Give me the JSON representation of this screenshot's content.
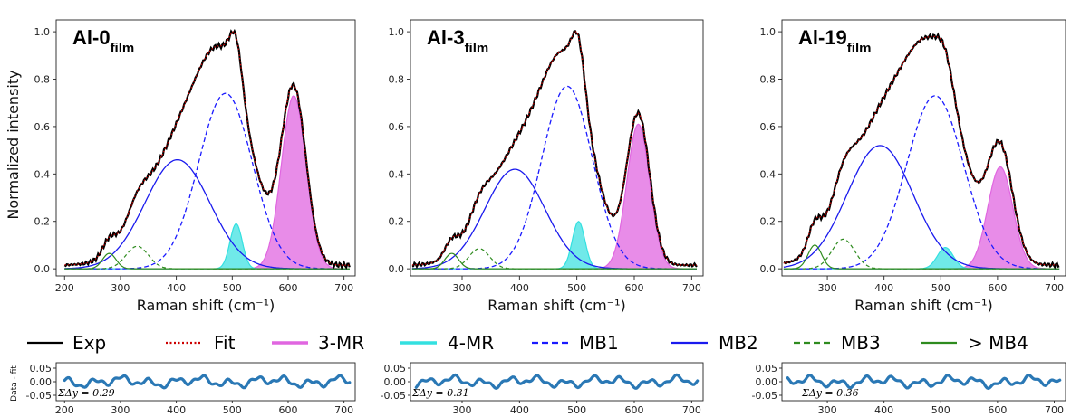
{
  "legend": {
    "items": [
      {
        "label": "Exp",
        "color": "#000000",
        "style": "solid"
      },
      {
        "label": "Fit",
        "color": "#cc0000",
        "style": "dotted"
      },
      {
        "label": "3-MR",
        "color": "#e066e0",
        "style": "solid"
      },
      {
        "label": "4-MR",
        "color": "#33e0e0",
        "style": "solid"
      },
      {
        "label": "MB1",
        "color": "#1a1aff",
        "style": "dashed"
      },
      {
        "label": "MB2",
        "color": "#1a1aee",
        "style": "solid"
      },
      {
        "label": "MB3",
        "color": "#2e8b1e",
        "style": "dashed"
      },
      {
        "label": "> MB4",
        "color": "#2e8b1e",
        "style": "solid"
      }
    ]
  },
  "chart_data": [
    {
      "type": "line",
      "title": "Al-0",
      "title_sub": "film",
      "xlabel": "Raman shift (cm⁻¹)",
      "ylabel": "Normalized intensity",
      "xlim": [
        185,
        720
      ],
      "ylim": [
        -0.03,
        1.05
      ],
      "xticks": [
        200,
        300,
        400,
        500,
        600,
        700
      ],
      "yticks": [
        0.0,
        0.2,
        0.4,
        0.6,
        0.8,
        1.0
      ],
      "components": {
        "3-MR": {
          "center": 610,
          "amplitude": 0.73,
          "width": 22
        },
        "4-MR": {
          "center": 507,
          "amplitude": 0.19,
          "width": 11
        },
        "MB1": {
          "center": 488,
          "amplitude": 0.74,
          "width": 48
        },
        "MB2": {
          "center": 402,
          "amplitude": 0.46,
          "width": 58
        },
        "MB3": {
          "center": 330,
          "amplitude": 0.095,
          "width": 20
        },
        "MB4": {
          "center": 280,
          "amplitude": 0.065,
          "width": 12
        }
      },
      "experimental_max": 1.0
    },
    {
      "type": "line",
      "title": "Al-3",
      "title_sub": "film",
      "xlabel": "Raman shift (cm⁻¹)",
      "xlim": [
        210,
        720
      ],
      "ylim": [
        -0.03,
        1.05
      ],
      "xticks": [
        200,
        300,
        400,
        500,
        600,
        700
      ],
      "yticks": [
        0.0,
        0.2,
        0.4,
        0.6,
        0.8,
        1.0
      ],
      "components": {
        "3-MR": {
          "center": 607,
          "amplitude": 0.61,
          "width": 20
        },
        "4-MR": {
          "center": 503,
          "amplitude": 0.2,
          "width": 11
        },
        "MB1": {
          "center": 483,
          "amplitude": 0.77,
          "width": 44
        },
        "MB2": {
          "center": 392,
          "amplitude": 0.42,
          "width": 52
        },
        "MB3": {
          "center": 330,
          "amplitude": 0.085,
          "width": 18
        },
        "MB4": {
          "center": 282,
          "amplitude": 0.065,
          "width": 12
        }
      },
      "experimental_max": 1.0
    },
    {
      "type": "line",
      "title": "Al-19",
      "title_sub": "film",
      "xlabel": "Raman shift (cm⁻¹)",
      "xlim": [
        220,
        720
      ],
      "ylim": [
        -0.03,
        1.05
      ],
      "xticks": [
        300,
        400,
        500,
        600,
        700
      ],
      "yticks": [
        0.0,
        0.2,
        0.4,
        0.6,
        0.8,
        1.0
      ],
      "components": {
        "3-MR": {
          "center": 605,
          "amplitude": 0.43,
          "width": 22
        },
        "4-MR": {
          "center": 508,
          "amplitude": 0.09,
          "width": 14
        },
        "MB1": {
          "center": 490,
          "amplitude": 0.73,
          "width": 50
        },
        "MB2": {
          "center": 393,
          "amplitude": 0.52,
          "width": 58
        },
        "MB3": {
          "center": 328,
          "amplitude": 0.125,
          "width": 20
        },
        "MB4": {
          "center": 278,
          "amplitude": 0.1,
          "width": 12
        }
      },
      "experimental_max": 0.98
    },
    {
      "type": "line",
      "ylabel": "Data - fit",
      "xlim": [
        185,
        720
      ],
      "ylim": [
        -0.07,
        0.07
      ],
      "xticks": [
        200,
        300,
        400,
        500,
        600,
        700
      ],
      "yticks": [
        0.05,
        0.0,
        -0.05
      ],
      "annotation": "ΣΔy = 0.29",
      "line_color": "#2a78b5"
    },
    {
      "type": "line",
      "xlim": [
        210,
        720
      ],
      "ylim": [
        -0.07,
        0.07
      ],
      "xticks": [
        200,
        300,
        400,
        500,
        600,
        700
      ],
      "yticks": [
        0.05,
        0.0,
        -0.05
      ],
      "annotation": "ΣΔy = 0.31",
      "line_color": "#2a78b5"
    },
    {
      "type": "line",
      "xlim": [
        220,
        720
      ],
      "ylim": [
        -0.07,
        0.07
      ],
      "xticks": [
        300,
        400,
        500,
        600,
        700
      ],
      "yticks": [
        0.05,
        0.0,
        -0.05
      ],
      "annotation": "ΣΔy = 0.36",
      "line_color": "#2a78b5"
    }
  ]
}
